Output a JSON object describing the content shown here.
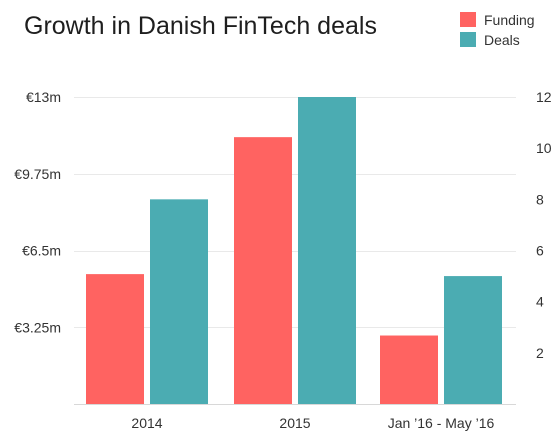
{
  "chart_data": {
    "type": "bar",
    "title": "Growth in Danish FinTech deals",
    "categories": [
      "2014",
      "2015",
      "Jan ’16 - May ’16"
    ],
    "series": [
      {
        "name": "Funding",
        "axis": "left",
        "color": "#ff6361",
        "values": [
          5.5,
          11.3,
          2.9
        ]
      },
      {
        "name": "Deals",
        "axis": "right",
        "color": "#4bacb2",
        "values": [
          8,
          12,
          5
        ]
      }
    ],
    "y_left": {
      "unit": "€ millions",
      "ylim": [
        0,
        13
      ],
      "ticks": [
        3.25,
        6.5,
        9.75,
        13
      ],
      "tick_labels": [
        "€3.25m",
        "€6.5m",
        "€9.75m",
        "€13m"
      ]
    },
    "y_right": {
      "ylim": [
        0,
        12
      ],
      "ticks": [
        2,
        4,
        6,
        8,
        10,
        12
      ],
      "tick_labels": [
        "2",
        "4",
        "6",
        "8",
        "10",
        "12"
      ]
    },
    "xlabel": "",
    "ylabel": "",
    "grid": true,
    "legend": {
      "placement": "top-right",
      "entries": [
        "Funding",
        "Deals"
      ]
    }
  }
}
